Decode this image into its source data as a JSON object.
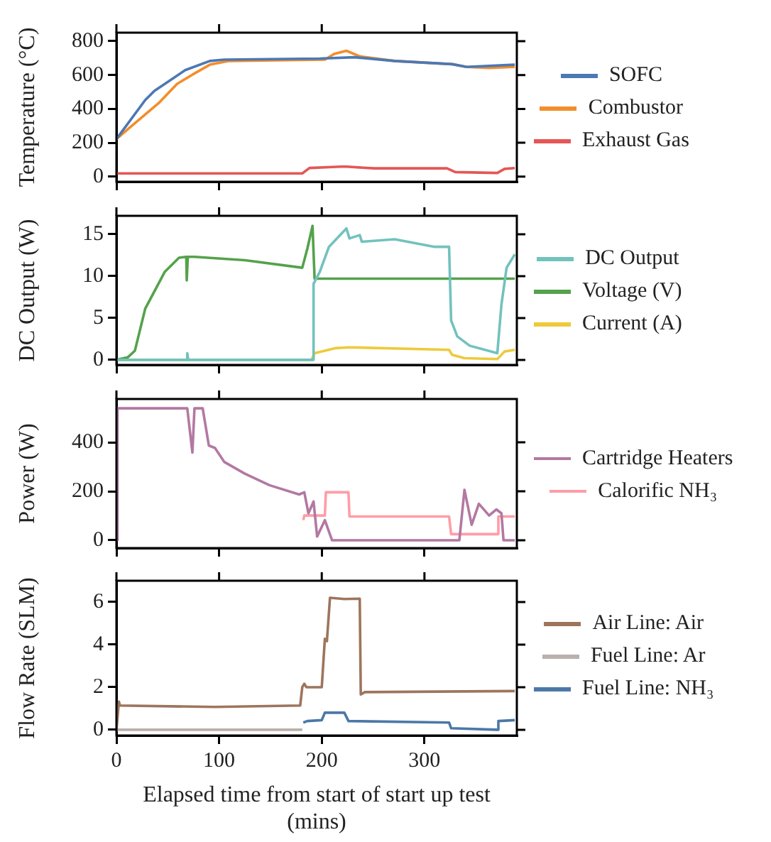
{
  "chart_data": [
    {
      "type": "line",
      "ylabel": "Temperature (°C)",
      "xlim": [
        0,
        390
      ],
      "xticks": [
        0,
        100,
        200,
        300
      ],
      "ylim": [
        -30,
        850
      ],
      "yticks": [
        0,
        200,
        400,
        600,
        800
      ],
      "tick_labels": "y",
      "legend": "right",
      "marker": "none",
      "series": [
        {
          "name": "SOFC",
          "color": "#4c78b5",
          "x": [
            0,
            28,
            37,
            67,
            91,
            105,
            198,
            232,
            271,
            327,
            341,
            388
          ],
          "values": [
            222,
            452,
            506,
            629,
            683,
            691,
            697,
            705,
            683,
            664,
            648,
            661
          ]
        },
        {
          "name": "Combustor",
          "color": "#f28e2b",
          "x": [
            0,
            13,
            42,
            59,
            74,
            91,
            110,
            203,
            212,
            224,
            237,
            271,
            327,
            341,
            363,
            388
          ],
          "values": [
            222,
            290,
            439,
            547,
            602,
            661,
            683,
            691,
            724,
            743,
            710,
            683,
            664,
            648,
            642,
            648
          ]
        },
        {
          "name": "Exhaust Gas",
          "color": "#e45756",
          "x": [
            0,
            181,
            188,
            222,
            251,
            322,
            330,
            371,
            378,
            388
          ],
          "values": [
            19,
            19,
            51,
            60,
            49,
            49,
            27,
            22,
            46,
            51
          ]
        }
      ]
    },
    {
      "type": "line",
      "ylabel": "DC Output (W)",
      "xlim": [
        0,
        390
      ],
      "xticks": [
        0,
        100,
        200,
        300
      ],
      "ylim": [
        -0.6,
        17.2
      ],
      "yticks": [
        0,
        5,
        10,
        15
      ],
      "tick_labels": "y",
      "legend": "right",
      "marker": "none",
      "series": [
        {
          "name": "DC Output",
          "color": "#72c2bd",
          "x": [
            0,
            68,
            69,
            70,
            191,
            192,
            198,
            207,
            224,
            227,
            237,
            239,
            271,
            310,
            324,
            326,
            332,
            344,
            371,
            375,
            380,
            388
          ],
          "values": [
            0,
            0,
            0.8,
            0,
            0,
            9.1,
            10.5,
            13.5,
            15.7,
            14.5,
            14.9,
            14.1,
            14.4,
            13.5,
            13.5,
            4.7,
            2.8,
            1.7,
            0.8,
            6.6,
            11.0,
            12.6
          ]
        },
        {
          "name": "Voltage (V)",
          "color": "#54a24b",
          "x": [
            0,
            11,
            18,
            28,
            47,
            61,
            68,
            68.5,
            69.5,
            76,
            125,
            181,
            186,
            191,
            192,
            193,
            388
          ],
          "values": [
            0,
            0.3,
            1.1,
            6.1,
            10.5,
            12.2,
            12.3,
            9.5,
            12.3,
            12.3,
            11.9,
            11.0,
            13.3,
            16.0,
            16.0,
            9.7,
            9.7
          ]
        },
        {
          "name": "Current (A)",
          "color": "#eeca3b",
          "x": [
            0,
            190,
            193,
            213,
            227,
            324,
            327,
            339,
            371,
            378,
            388
          ],
          "values": [
            0,
            0,
            0.8,
            1.4,
            1.5,
            1.2,
            0.6,
            0.2,
            0.1,
            1.0,
            1.2
          ]
        }
      ]
    },
    {
      "type": "line",
      "ylabel": "Power (W)",
      "xlim": [
        0,
        390
      ],
      "xticks": [
        0,
        100,
        200,
        300
      ],
      "ylim": [
        -32,
        577
      ],
      "yticks": [
        0,
        200,
        400
      ],
      "tick_labels": "y",
      "legend": "right",
      "marker": "none",
      "series": [
        {
          "name": "Cartridge Heaters",
          "color": "#b279a2",
          "x": [
            0,
            1,
            69,
            74,
            76,
            84,
            90,
            96,
            105,
            125,
            149,
            178,
            183,
            187,
            192,
            195.5,
            203,
            210,
            334,
            339,
            346,
            353,
            363,
            370,
            375,
            377,
            388
          ],
          "values": [
            0,
            539,
            539,
            358,
            539,
            539,
            387,
            377,
            320,
            272,
            225,
            187,
            196,
            110,
            158,
            15,
            82,
            0,
            0,
            206,
            63,
            149,
            101,
            126,
            110,
            0,
            0
          ]
        },
        {
          "name": "Calorific NH₃",
          "color": "#ff9da6",
          "x": [
            182,
            183,
            203,
            204,
            226,
            227,
            324,
            326,
            371,
            372,
            388
          ],
          "values": [
            82,
            101,
            101,
            196,
            196,
            97,
            97,
            25,
            25,
            97,
            97
          ]
        }
      ]
    },
    {
      "type": "line",
      "ylabel": "Flow Rate (SLM)",
      "xlabel": "Elapsed time from start of start up test (mins)",
      "xlim": [
        0,
        390
      ],
      "xticks": [
        0,
        100,
        200,
        300
      ],
      "ylim": [
        -0.27,
        7
      ],
      "yticks": [
        0,
        2,
        4,
        6
      ],
      "legend": "right",
      "marker": "none",
      "series": [
        {
          "name": "Air Line: Air",
          "color": "#9d755d",
          "x": [
            0,
            2.4,
            3.4,
            96,
            179,
            181,
            183,
            185,
            200,
            203,
            205,
            208,
            222,
            237,
            238,
            242,
            388
          ],
          "values": [
            0,
            1.32,
            1.14,
            1.07,
            1.14,
            2.0,
            2.16,
            2.0,
            2.0,
            4.27,
            4.16,
            6.2,
            6.14,
            6.16,
            1.66,
            1.77,
            1.82
          ]
        },
        {
          "name": "Fuel Line: Ar",
          "color": "#bab0ac",
          "x": [
            0,
            181
          ],
          "values": [
            0,
            0
          ]
        },
        {
          "name": "Fuel Line: NH₃",
          "color": "#4c78a8",
          "x": [
            182,
            186,
            200,
            203,
            222,
            226,
            324,
            326,
            371,
            372,
            388
          ],
          "values": [
            0.34,
            0.41,
            0.45,
            0.8,
            0.8,
            0.41,
            0.34,
            0.07,
            0,
            0.41,
            0.45
          ]
        }
      ]
    }
  ]
}
